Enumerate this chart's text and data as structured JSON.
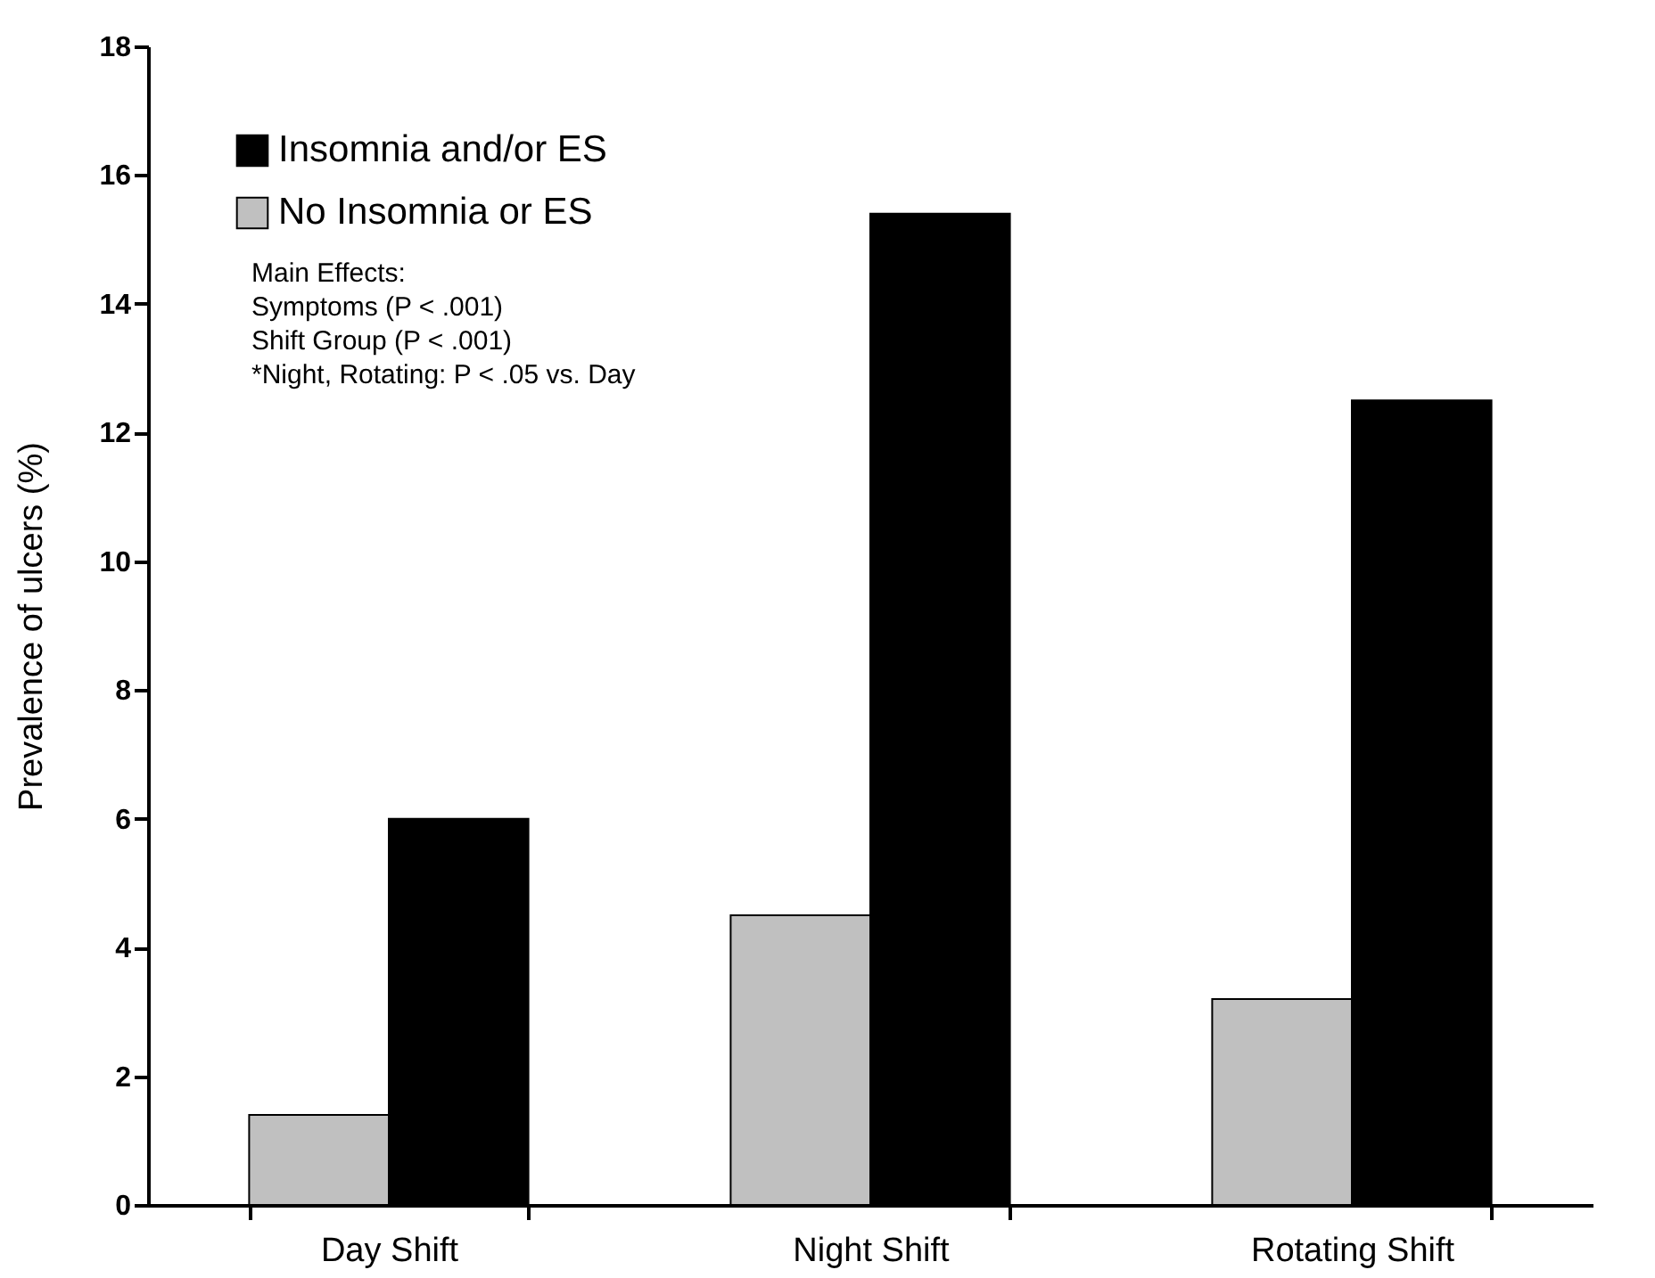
{
  "chart_data": {
    "type": "bar",
    "ylabel": "Prevalence of ulcers (%)",
    "categories": [
      "Day Shift",
      "Night Shift",
      "Rotating Shift"
    ],
    "series": [
      {
        "name": "No Insomnia or ES",
        "color": "#c0c0c0",
        "values": [
          1.4,
          4.5,
          3.2
        ]
      },
      {
        "name": "Insomnia and/or ES",
        "color": "#000000",
        "values": [
          6.0,
          15.4,
          12.5
        ]
      }
    ],
    "ylim": [
      0,
      18
    ],
    "yticks": [
      0,
      2,
      4,
      6,
      8,
      10,
      12,
      14,
      16,
      18
    ],
    "grid": false,
    "legend": "top left",
    "annotations": [
      "Main Effects:",
      "Symptoms (P < .001)",
      "Shift Group (P < .001)",
      "*Night, Rotating: P < .05 vs. Day"
    ]
  }
}
